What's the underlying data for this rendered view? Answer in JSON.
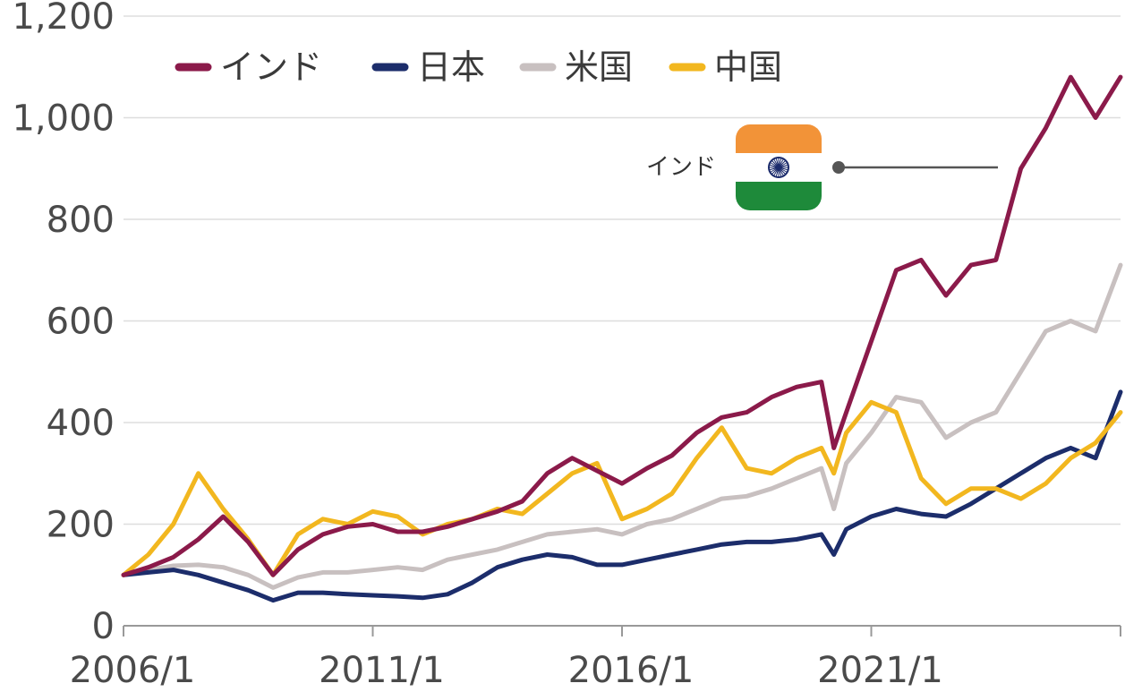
{
  "chart_data": {
    "type": "line",
    "title": "",
    "xlabel": "",
    "ylabel": "",
    "ylim": [
      0,
      1200
    ],
    "yticks": [
      0,
      200,
      400,
      600,
      800,
      1000,
      1200
    ],
    "ytick_labels": [
      "0",
      "200",
      "400",
      "600",
      "800",
      "1,000",
      "1,200"
    ],
    "xlim": [
      "2006-01",
      "2026-01"
    ],
    "xtick_labels": [
      "2006/1",
      "2011/1",
      "2016/1",
      "2021/1"
    ],
    "grid": "horizontal",
    "legend_position": "top-left",
    "x": [
      "2006-01",
      "2006-07",
      "2007-01",
      "2007-07",
      "2008-01",
      "2008-07",
      "2009-01",
      "2009-07",
      "2010-01",
      "2010-07",
      "2011-01",
      "2011-07",
      "2012-01",
      "2012-07",
      "2013-01",
      "2013-07",
      "2014-01",
      "2014-07",
      "2015-01",
      "2015-07",
      "2016-01",
      "2016-07",
      "2017-01",
      "2017-07",
      "2018-01",
      "2018-07",
      "2019-01",
      "2019-07",
      "2020-01",
      "2020-04",
      "2020-07",
      "2021-01",
      "2021-07",
      "2022-01",
      "2022-07",
      "2023-01",
      "2023-07",
      "2024-01",
      "2024-07",
      "2025-01",
      "2025-07",
      "2026-01"
    ],
    "series": [
      {
        "name": "インド",
        "color": "#8b1a4a",
        "values": [
          100,
          115,
          135,
          170,
          215,
          165,
          100,
          150,
          180,
          195,
          200,
          185,
          185,
          195,
          210,
          225,
          245,
          300,
          330,
          305,
          280,
          310,
          335,
          380,
          410,
          420,
          450,
          470,
          480,
          350,
          420,
          560,
          700,
          720,
          650,
          710,
          720,
          900,
          980,
          1080,
          1000,
          1080
        ]
      },
      {
        "name": "日本",
        "color": "#1c2d6b",
        "values": [
          100,
          105,
          110,
          100,
          85,
          70,
          50,
          65,
          65,
          62,
          60,
          58,
          55,
          62,
          85,
          115,
          130,
          140,
          135,
          120,
          120,
          130,
          140,
          150,
          160,
          165,
          165,
          170,
          180,
          140,
          190,
          215,
          230,
          220,
          215,
          240,
          270,
          300,
          330,
          350,
          330,
          460
        ]
      },
      {
        "name": "米国",
        "color": "#c8c0c0",
        "values": [
          100,
          110,
          118,
          120,
          115,
          100,
          75,
          95,
          105,
          105,
          110,
          115,
          110,
          130,
          140,
          150,
          165,
          180,
          185,
          190,
          180,
          200,
          210,
          230,
          250,
          255,
          270,
          290,
          310,
          230,
          320,
          380,
          450,
          440,
          370,
          400,
          420,
          500,
          580,
          600,
          580,
          710
        ]
      },
      {
        "name": "中国",
        "color": "#f2b71f",
        "values": [
          100,
          140,
          200,
          300,
          230,
          170,
          100,
          180,
          210,
          200,
          225,
          215,
          180,
          200,
          210,
          230,
          220,
          260,
          300,
          320,
          210,
          230,
          260,
          330,
          390,
          310,
          300,
          330,
          350,
          300,
          380,
          440,
          420,
          290,
          240,
          270,
          270,
          250,
          280,
          330,
          360,
          420
        ]
      }
    ],
    "annotations": [
      {
        "text": "インド",
        "series": "インド",
        "icon": "india-flag-icon"
      }
    ]
  },
  "flag_colors": {
    "saffron": "#f29338",
    "white": "#ffffff",
    "green": "#1e8a3a",
    "chakra": "#1a2a6b"
  }
}
